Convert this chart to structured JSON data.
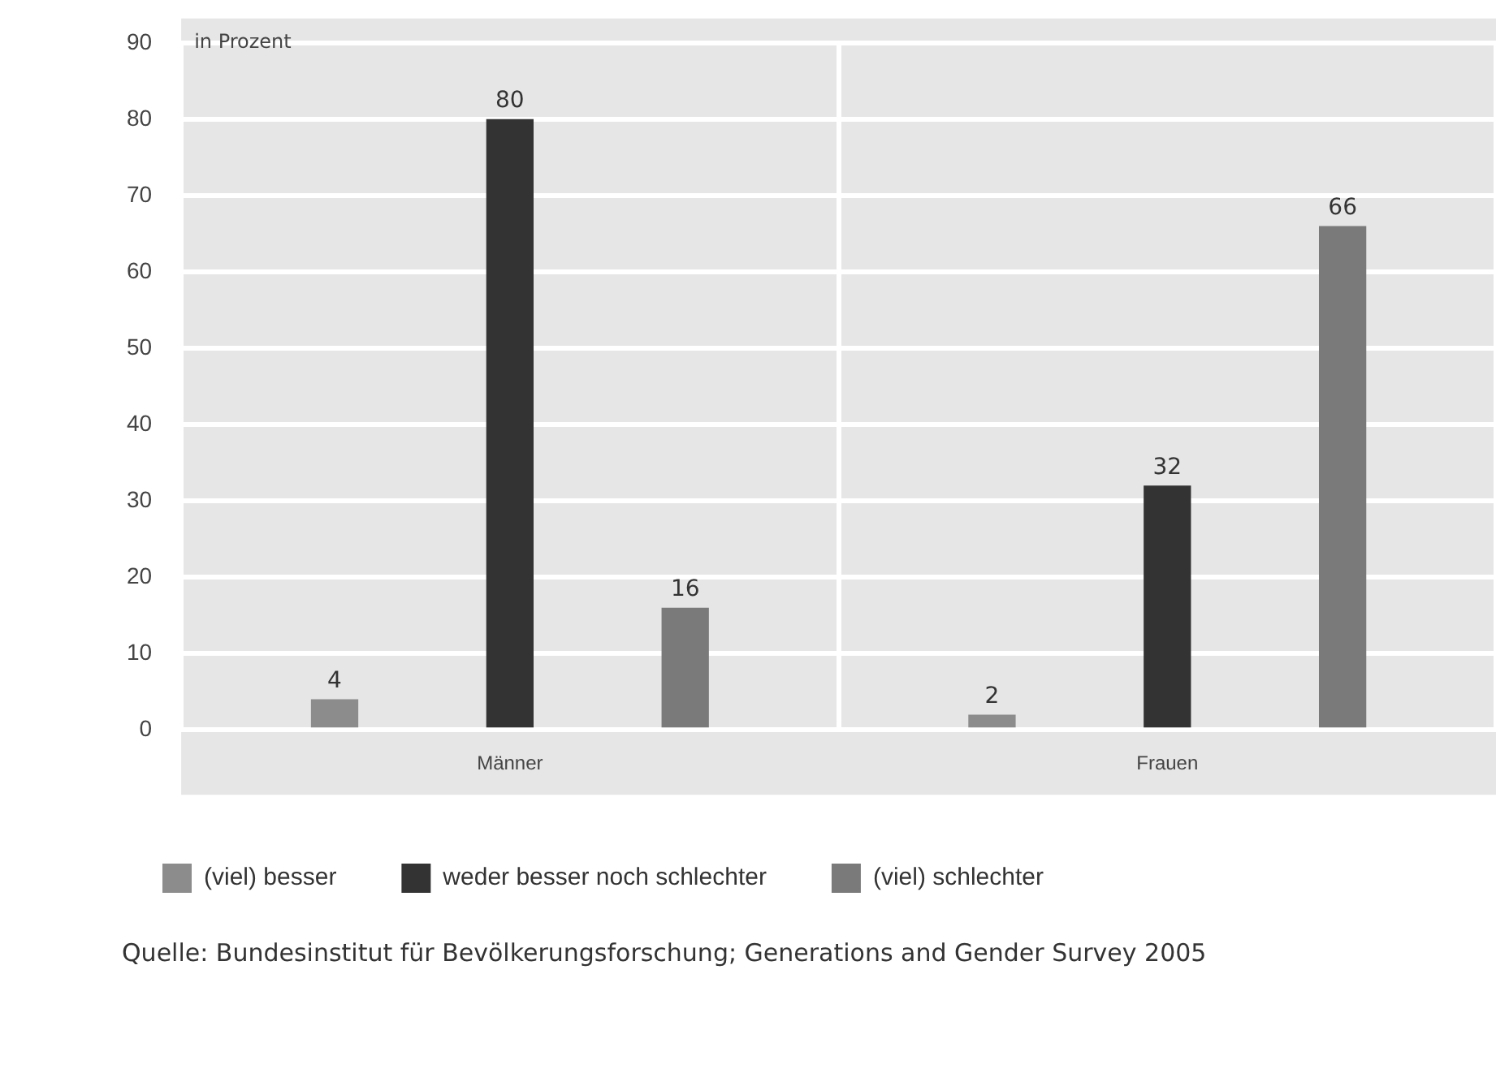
{
  "chart_data": {
    "type": "bar",
    "ylabel": "in Prozent",
    "categories": [
      "Männer",
      "Frauen"
    ],
    "series": [
      {
        "name": "(viel) besser",
        "color": "#8c8c8c",
        "values": [
          4,
          2
        ]
      },
      {
        "name": "weder besser noch schlechter",
        "color": "#333333",
        "values": [
          80,
          32
        ]
      },
      {
        "name": "(viel) schlechter",
        "color": "#7a7a7a",
        "values": [
          16,
          66
        ]
      }
    ],
    "ylim": [
      0,
      90
    ],
    "yticks": [
      0,
      10,
      20,
      30,
      40,
      50,
      60,
      70,
      80,
      90
    ],
    "grid": true,
    "legend": "bottom left",
    "data_labels": true,
    "annotations": [
      "Quelle: Bundesinstitut für Bevölkerungsforschung; Generations and Gender Survey 2005"
    ]
  }
}
